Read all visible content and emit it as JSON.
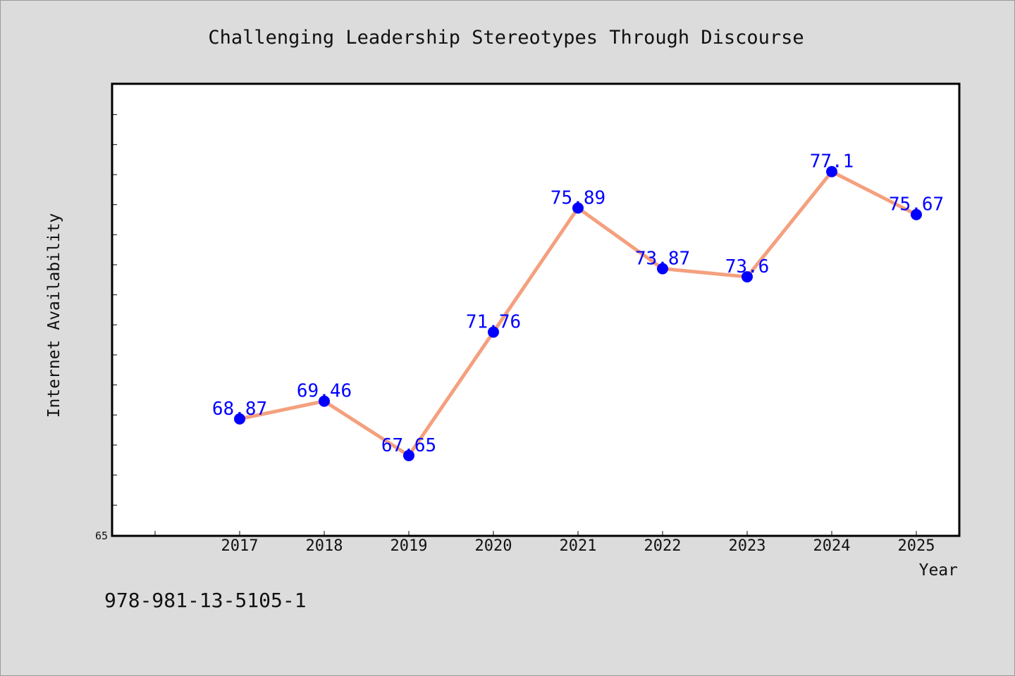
{
  "chart_data": {
    "type": "line",
    "title": "Challenging Leadership Stereotypes Through Discourse",
    "xlabel": "Year",
    "ylabel": "Internet Availability",
    "categories": [
      "2017",
      "2018",
      "2019",
      "2020",
      "2021",
      "2022",
      "2023",
      "2024",
      "2025"
    ],
    "series": [
      {
        "values": [
          68.87,
          69.46,
          67.65,
          71.76,
          75.89,
          73.87,
          73.6,
          77.1,
          75.67
        ],
        "data_labels": [
          "68.87",
          "69.46",
          "67.65",
          "71.76",
          "75.89",
          "73.87",
          "73.6",
          "77.1",
          "75.67"
        ]
      }
    ],
    "ylim": [
      65,
      80
    ],
    "ytick_labels": [
      "65"
    ],
    "grid": false,
    "legend": "none",
    "colors": {
      "line": "#f4a07e",
      "marker": "#0000ff",
      "data_label": "#0000ff",
      "background": "#dcdcdc",
      "plot_background": "#ffffff"
    }
  },
  "footer": {
    "isbn": "978-981-13-5105-1"
  }
}
